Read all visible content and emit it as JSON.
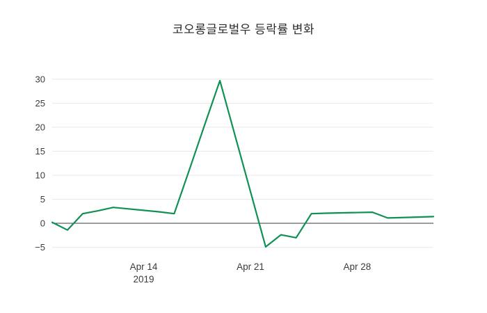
{
  "chart_data": {
    "type": "line",
    "title": "코오롱글로벌우 등락률 변화",
    "series_name": "등락률",
    "x": [
      "2019-04-08",
      "2019-04-09",
      "2019-04-10",
      "2019-04-11",
      "2019-04-12",
      "2019-04-15",
      "2019-04-16",
      "2019-04-17",
      "2019-04-18",
      "2019-04-19",
      "2019-04-22",
      "2019-04-23",
      "2019-04-24",
      "2019-04-25",
      "2019-04-26",
      "2019-04-29",
      "2019-04-30",
      "2019-05-02",
      "2019-05-03"
    ],
    "values": [
      0.2,
      -1.4,
      2.0,
      2.6,
      3.3,
      2.4,
      2.0,
      11.2,
      20.5,
      29.7,
      -4.9,
      -2.4,
      -3.0,
      2.0,
      2.1,
      2.3,
      1.1,
      1.3,
      1.4
    ],
    "x_range": [
      "2019-04-08",
      "2019-05-03"
    ],
    "y_range": [
      -6.8,
      32.0
    ],
    "y_ticks": [
      {
        "value": -5,
        "label": "−5"
      },
      {
        "value": 0,
        "label": "0"
      },
      {
        "value": 5,
        "label": "5"
      },
      {
        "value": 10,
        "label": "10"
      },
      {
        "value": 15,
        "label": "15"
      },
      {
        "value": 20,
        "label": "20"
      },
      {
        "value": 25,
        "label": "25"
      },
      {
        "value": 30,
        "label": "30"
      }
    ],
    "x_ticks": [
      {
        "date": "2019-04-14",
        "label": "Apr 14",
        "sublabel": "2019"
      },
      {
        "date": "2019-04-21",
        "label": "Apr 21",
        "sublabel": ""
      },
      {
        "date": "2019-04-28",
        "label": "Apr 28",
        "sublabel": ""
      }
    ],
    "grid": true,
    "legend": "none",
    "line_color": "#0e9152",
    "grid_color": "#e8e8e8",
    "zero_line_color": "#3a3a3a",
    "text_color": "#3b3b3b",
    "background_color": "#ffffff"
  }
}
